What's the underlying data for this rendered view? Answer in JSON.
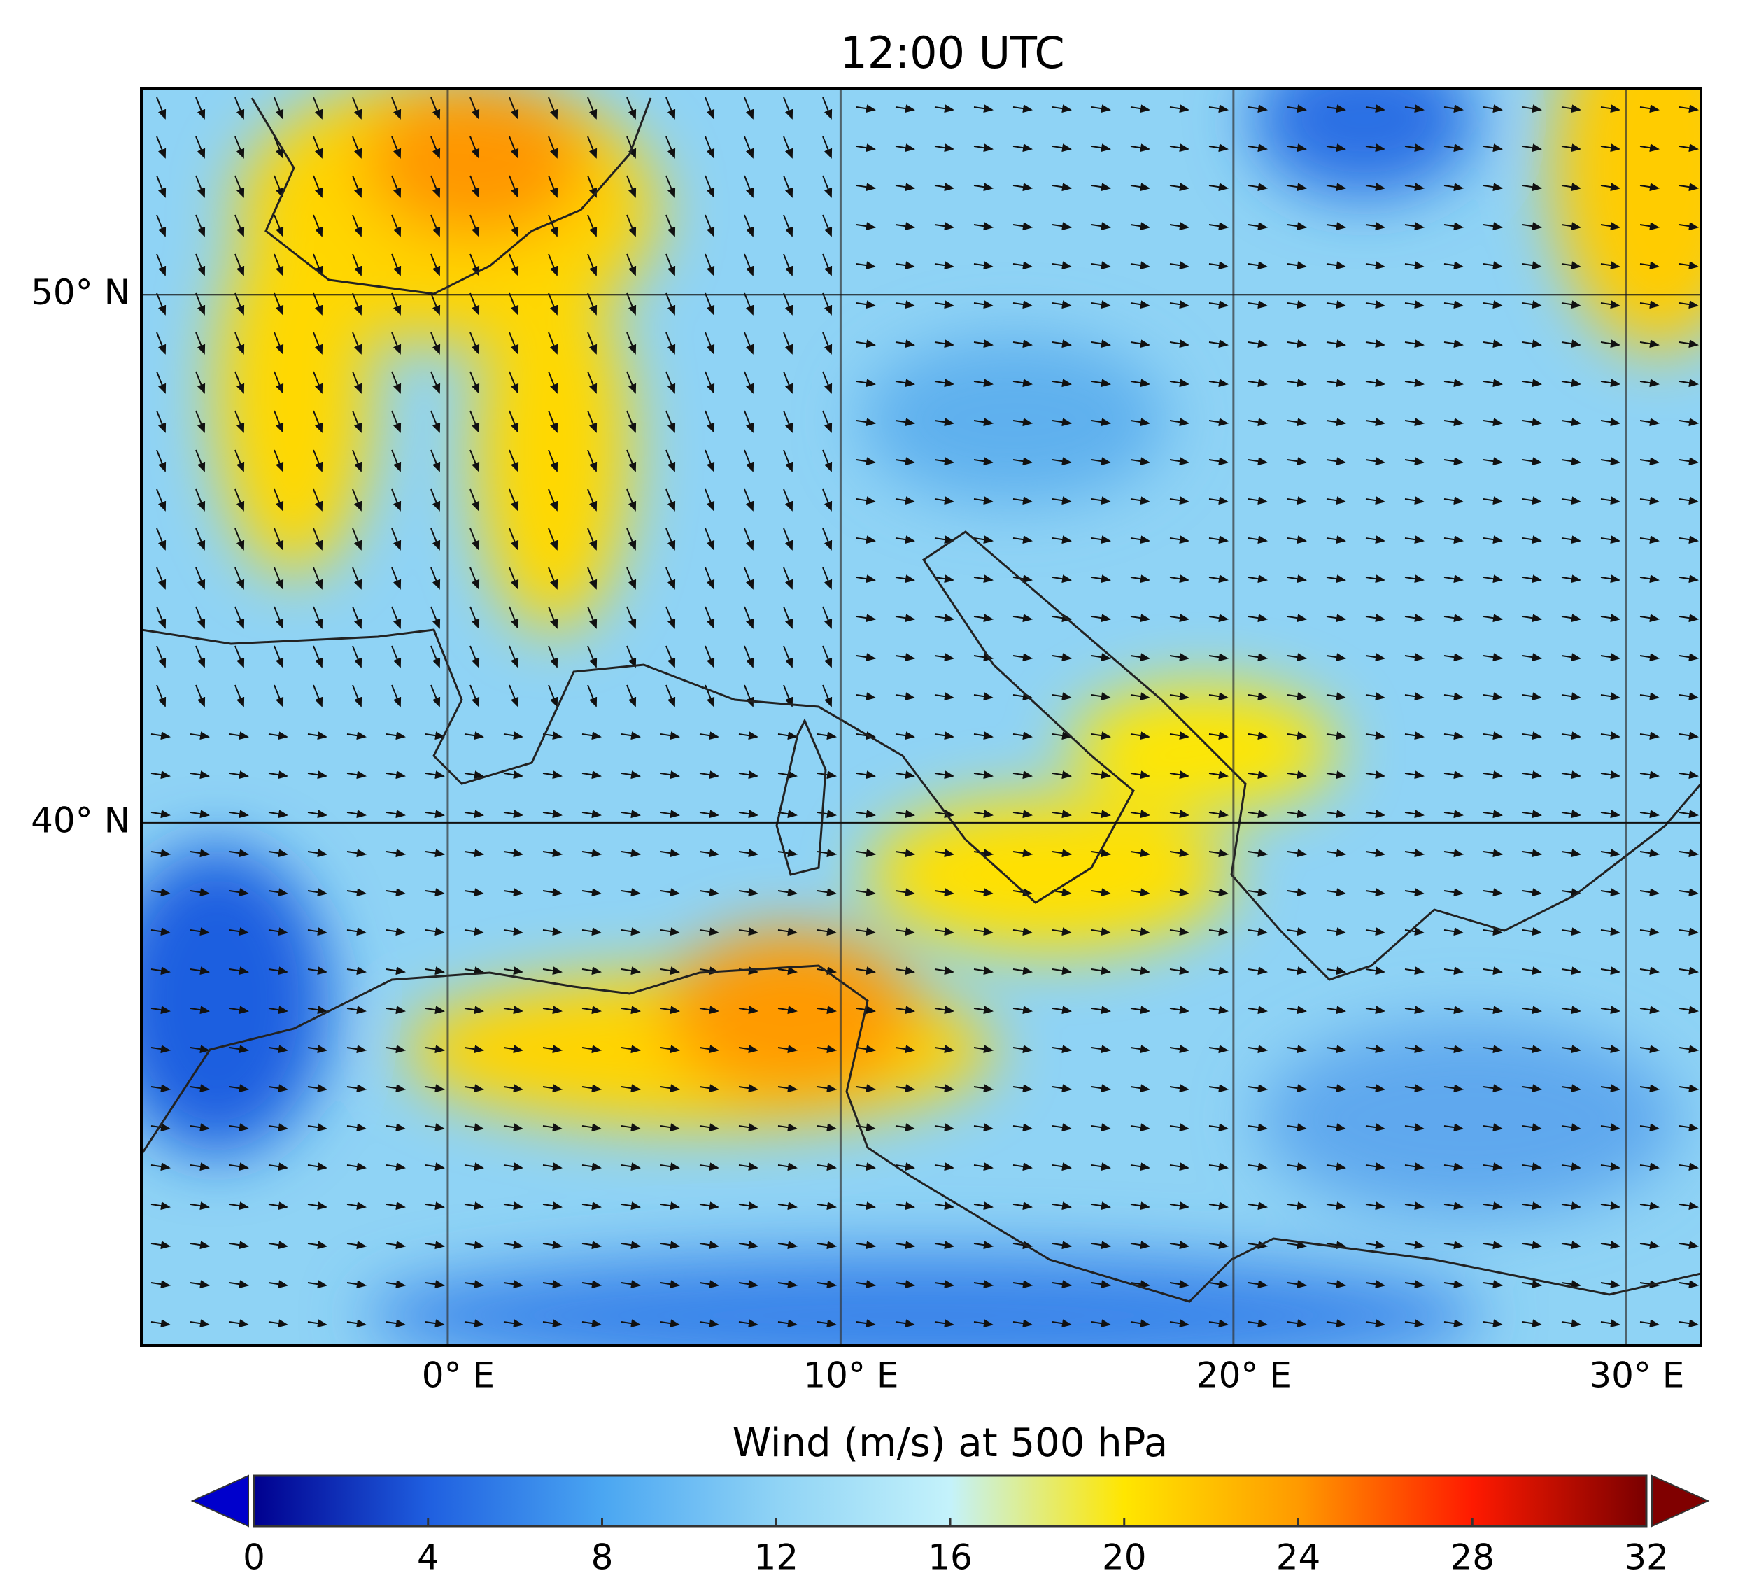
{
  "chart_data": {
    "type": "map",
    "title": "12:00 UTC",
    "xlim": [
      -7.8,
      31.9
    ],
    "ylim": [
      30.1,
      53.9
    ],
    "xticks": [
      {
        "value": 0,
        "label": "0° E"
      },
      {
        "value": 10,
        "label": "10° E"
      },
      {
        "value": 20,
        "label": "20° E"
      },
      {
        "value": 30,
        "label": "30° E"
      }
    ],
    "yticks": [
      {
        "value": 40,
        "label": "40° N"
      },
      {
        "value": 50,
        "label": "50° N"
      }
    ],
    "grid": true,
    "colorbar": {
      "label": "Wind (m/s) at 500 hPa",
      "lim": [
        0,
        32
      ],
      "ticks": [
        0,
        4,
        8,
        12,
        16,
        20,
        24,
        28,
        32
      ],
      "colors": [
        "#00008f",
        "#1f5fe0",
        "#4aa6f2",
        "#8fd3f5",
        "#c4f2fb",
        "#ffe600",
        "#ff9a00",
        "#ff1a00",
        "#7a0000"
      ],
      "under_color": "#0000cc",
      "over_color": "#800000"
    }
  }
}
